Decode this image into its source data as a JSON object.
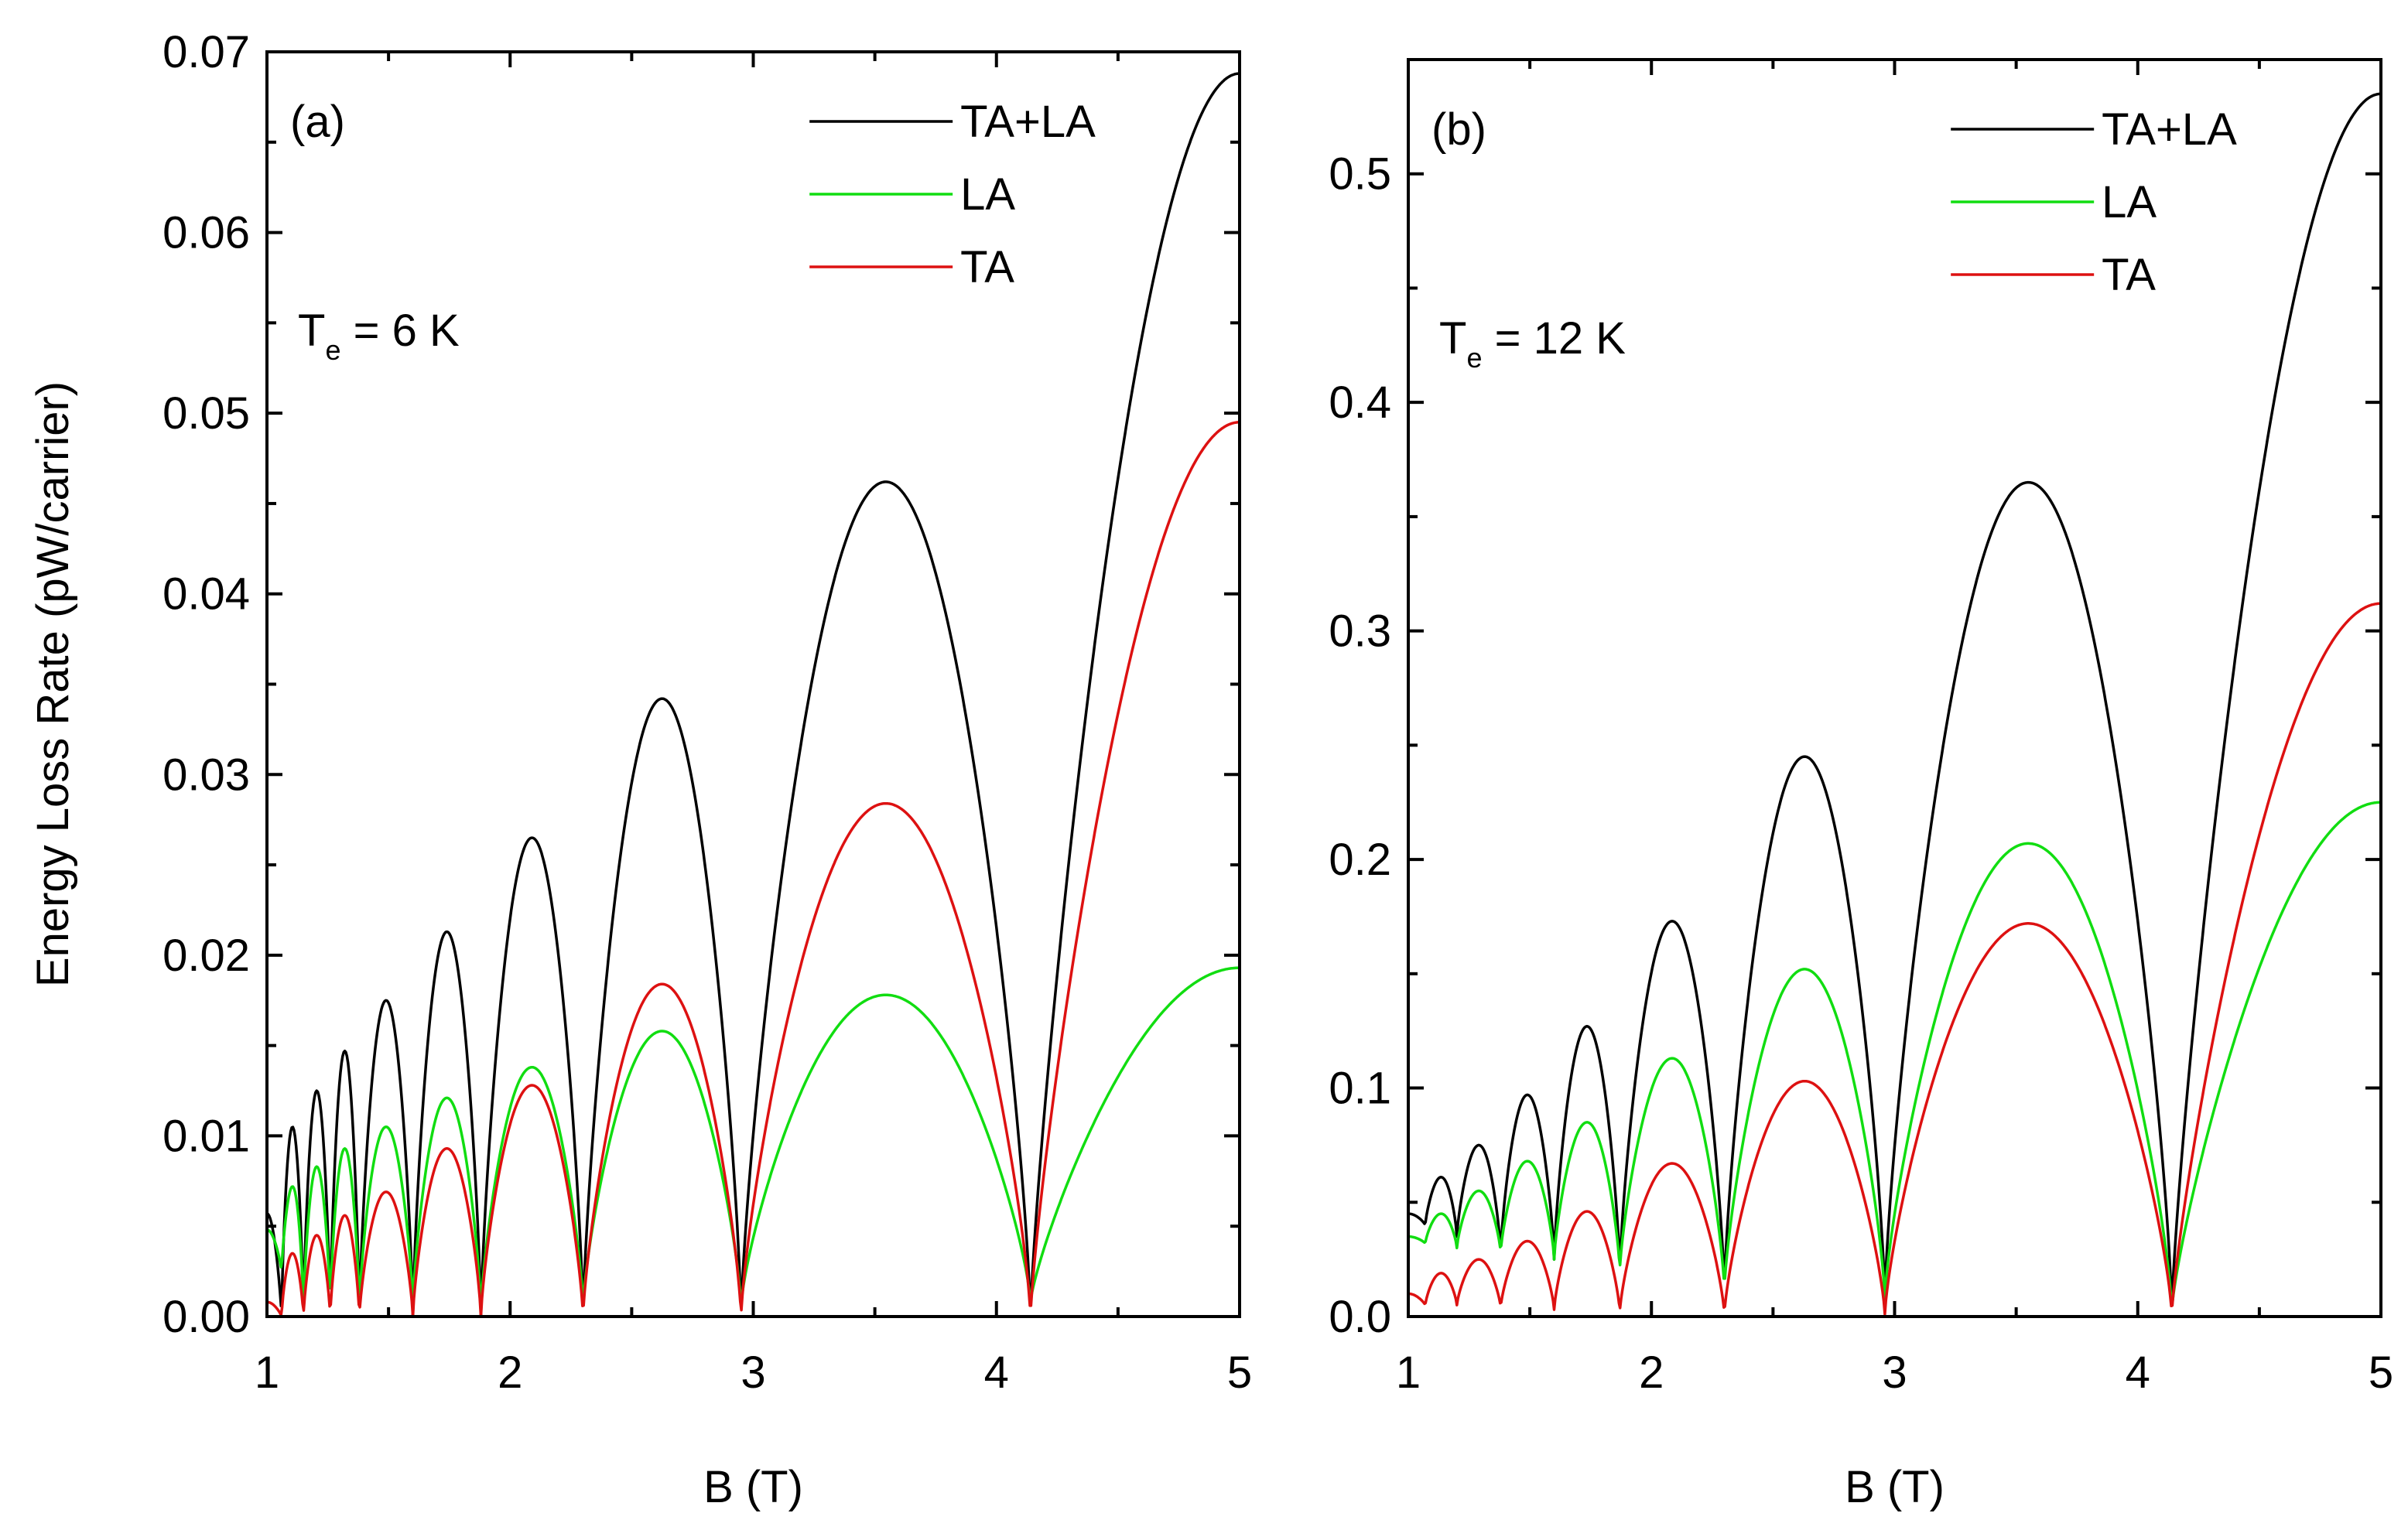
{
  "chart_data": [
    {
      "type": "line",
      "panel_label": "(a)",
      "temp_prefix": "T",
      "temp_sub": "e",
      "temp_suffix": " = 6 K",
      "xlabel": "B (T)",
      "ylabel": "Energy Loss Rate (pW/carrier)",
      "xlim": [
        1,
        5
      ],
      "ylim": [
        0,
        0.07
      ],
      "xticks": [
        1,
        2,
        3,
        4,
        5
      ],
      "xtick_labels": [
        "1",
        "2",
        "3",
        "4",
        "5"
      ],
      "yticks": [
        0,
        0.01,
        0.02,
        0.03,
        0.04,
        0.05,
        0.06,
        0.07
      ],
      "ytick_labels": [
        "0.00",
        "0.01",
        "0.02",
        "0.03",
        "0.04",
        "0.05",
        "0.06",
        "0.07"
      ],
      "legend_position": "top-right",
      "zeros": [
        1.06,
        1.15,
        1.26,
        1.38,
        1.6,
        1.88,
        2.3,
        2.95,
        4.14
      ],
      "series": [
        {
          "name": "TA+LA",
          "color": "#000000",
          "start": 0.0057,
          "peaks": [
            0.0105,
            0.0125,
            0.0147,
            0.0175,
            0.0213,
            0.0265,
            0.0342,
            0.0462
          ],
          "end": 0.0688,
          "floor": 0
        },
        {
          "name": "LA",
          "color": "#11dd11",
          "start": 0.0048,
          "peaks": [
            0.0072,
            0.0083,
            0.0093,
            0.0105,
            0.0121,
            0.0138,
            0.0158,
            0.0178
          ],
          "end": 0.0193,
          "floor": [
            0.0025,
            0.0004,
            0.0006,
            0.0005,
            0.0006,
            0.0004,
            0.0006,
            0.0006,
            0.0008
          ]
        },
        {
          "name": "TA",
          "color": "#dd1111",
          "start": 0.0008,
          "peaks": [
            0.0035,
            0.0045,
            0.0056,
            0.0069,
            0.0093,
            0.0128,
            0.0184,
            0.0284
          ],
          "end": 0.0495,
          "floor": 0
        }
      ]
    },
    {
      "type": "line",
      "panel_label": "(b)",
      "temp_prefix": "T",
      "temp_sub": "e",
      "temp_suffix": " = 12 K",
      "xlabel": "B (T)",
      "ylabel": "",
      "xlim": [
        1,
        5
      ],
      "ylim": [
        0,
        0.55
      ],
      "xticks": [
        1,
        2,
        3,
        4,
        5
      ],
      "xtick_labels": [
        "1",
        "2",
        "3",
        "4",
        "5"
      ],
      "yticks": [
        0,
        0.1,
        0.2,
        0.3,
        0.4,
        0.5
      ],
      "ytick_labels": [
        "0.0",
        "0.1",
        "0.2",
        "0.3",
        "0.4",
        "0.5"
      ],
      "legend_position": "top-right",
      "zeros": [
        1.07,
        1.2,
        1.38,
        1.6,
        1.87,
        2.3,
        2.96,
        4.14
      ],
      "series": [
        {
          "name": "TA+LA",
          "color": "#000000",
          "start": 0.045,
          "peaks": [
            0.061,
            0.075,
            0.097,
            0.127,
            0.173,
            0.245,
            0.365
          ],
          "end": 0.535,
          "floor": [
            0.04,
            0.035,
            0.028,
            0.025,
            0.02,
            0.012,
            0.008,
            0.003
          ]
        },
        {
          "name": "LA",
          "color": "#11dd11",
          "start": 0.035,
          "peaks": [
            0.045,
            0.055,
            0.068,
            0.085,
            0.113,
            0.152,
            0.207
          ],
          "end": 0.225,
          "floor": [
            0.032,
            0.03,
            0.028,
            0.025,
            0.02,
            0.012,
            0.008,
            0.003
          ]
        },
        {
          "name": "TA",
          "color": "#dd1111",
          "start": 0.01,
          "peaks": [
            0.019,
            0.025,
            0.033,
            0.046,
            0.067,
            0.103,
            0.172
          ],
          "end": 0.312,
          "floor": [
            0.005,
            0.005,
            0.004,
            0.003,
            0.002,
            0.001,
            0.001,
            0.001
          ]
        }
      ]
    }
  ]
}
